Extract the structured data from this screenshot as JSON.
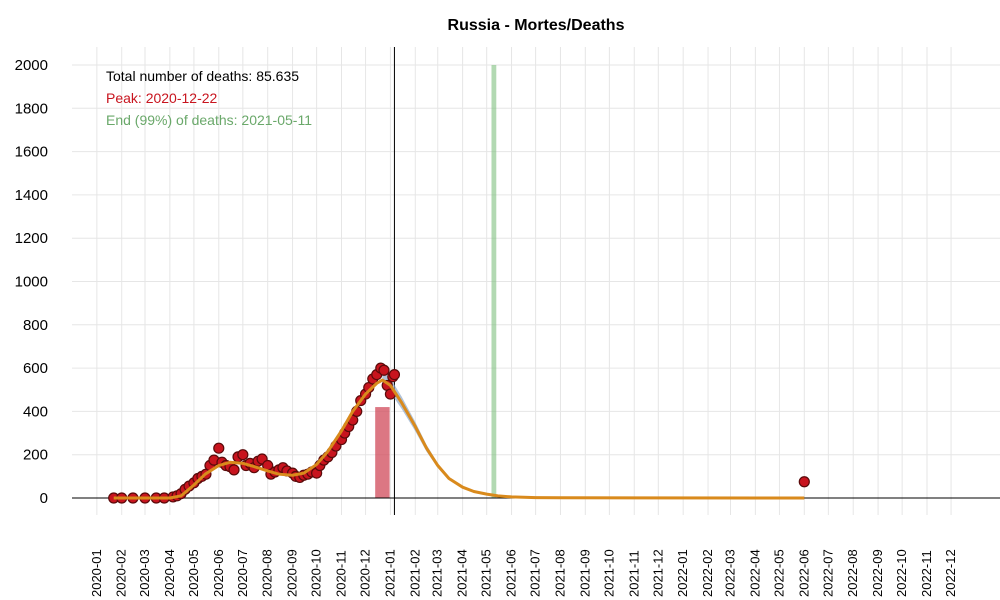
{
  "chart_data": {
    "type": "scatter",
    "title": "Russia - Mortes/Deaths",
    "xlabel": "",
    "ylabel": "",
    "ylim": [
      0,
      2000
    ],
    "xlim": [
      "2019-12-01",
      "2023-01-31"
    ],
    "yticks": [
      0,
      200,
      400,
      600,
      800,
      1000,
      1200,
      1400,
      1600,
      1800,
      2000
    ],
    "xticks": [
      "2020-01",
      "2020-02",
      "2020-03",
      "2020-04",
      "2020-05",
      "2020-06",
      "2020-07",
      "2020-08",
      "2020-09",
      "2020-10",
      "2020-11",
      "2020-12",
      "2021-01",
      "2021-02",
      "2021-03",
      "2021-04",
      "2021-05",
      "2021-06",
      "2021-07",
      "2021-08",
      "2021-09",
      "2021-10",
      "2021-11",
      "2021-12",
      "2022-01",
      "2022-02",
      "2022-03",
      "2022-04",
      "2022-05",
      "2022-06",
      "2022-07",
      "2022-08",
      "2022-09",
      "2022-10",
      "2022-11",
      "2022-12"
    ],
    "grid": true,
    "annotations": {
      "total": "Total number of deaths: 85.635",
      "peak": "Peak: 2020-12-22",
      "end": "End (99%) of deaths: 2021-05-11"
    },
    "colors": {
      "points_fill": "#c8141e",
      "points_stroke": "#5a0a0a",
      "fit_line": "#d98a1c",
      "peak_band": "#d04a5a",
      "end_band": "#7fbf7f",
      "peak_text": "#c8141e",
      "end_text": "#6aa86a",
      "ci_band": "#8fa8c8"
    },
    "current_date": "2021-01-06",
    "peak_band": [
      "2020-12-13",
      "2020-12-31"
    ],
    "end_band": [
      "2021-05-07",
      "2021-05-13"
    ],
    "observed": {
      "dates": [
        "2020-01-22",
        "2020-02-01",
        "2020-02-15",
        "2020-03-01",
        "2020-03-15",
        "2020-03-25",
        "2020-04-05",
        "2020-04-10",
        "2020-04-15",
        "2020-04-20",
        "2020-04-25",
        "2020-05-01",
        "2020-05-06",
        "2020-05-11",
        "2020-05-16",
        "2020-05-21",
        "2020-05-26",
        "2020-06-01",
        "2020-06-05",
        "2020-06-10",
        "2020-06-15",
        "2020-06-20",
        "2020-06-25",
        "2020-07-01",
        "2020-07-05",
        "2020-07-10",
        "2020-07-15",
        "2020-07-20",
        "2020-07-25",
        "2020-08-01",
        "2020-08-05",
        "2020-08-10",
        "2020-08-15",
        "2020-08-20",
        "2020-08-25",
        "2020-09-01",
        "2020-09-05",
        "2020-09-10",
        "2020-09-15",
        "2020-09-20",
        "2020-09-25",
        "2020-10-01",
        "2020-10-05",
        "2020-10-10",
        "2020-10-15",
        "2020-10-20",
        "2020-10-25",
        "2020-11-01",
        "2020-11-05",
        "2020-11-10",
        "2020-11-15",
        "2020-11-20",
        "2020-11-25",
        "2020-12-01",
        "2020-12-05",
        "2020-12-10",
        "2020-12-15",
        "2020-12-20",
        "2020-12-24",
        "2020-12-28",
        "2021-01-01",
        "2021-01-04",
        "2021-01-06",
        "2022-06-01"
      ],
      "values": [
        0,
        0,
        0,
        0,
        0,
        0,
        5,
        10,
        20,
        40,
        55,
        70,
        90,
        100,
        110,
        150,
        175,
        230,
        165,
        150,
        145,
        130,
        190,
        200,
        150,
        160,
        140,
        170,
        180,
        150,
        110,
        120,
        130,
        140,
        125,
        115,
        100,
        95,
        105,
        110,
        120,
        115,
        150,
        175,
        190,
        210,
        240,
        270,
        300,
        330,
        360,
        400,
        450,
        480,
        510,
        550,
        570,
        600,
        590,
        520,
        480,
        560,
        570,
        75
      ]
    },
    "fit_line": {
      "dates": [
        "2020-01-22",
        "2020-04-01",
        "2020-04-15",
        "2020-05-01",
        "2020-05-15",
        "2020-06-01",
        "2020-06-15",
        "2020-07-01",
        "2020-07-15",
        "2020-08-01",
        "2020-08-15",
        "2020-09-01",
        "2020-09-15",
        "2020-10-01",
        "2020-10-15",
        "2020-11-01",
        "2020-11-15",
        "2020-12-01",
        "2020-12-15",
        "2020-12-22",
        "2021-01-01",
        "2021-01-15",
        "2021-02-01",
        "2021-02-15",
        "2021-03-01",
        "2021-03-15",
        "2021-04-01",
        "2021-04-15",
        "2021-05-01",
        "2021-05-15",
        "2021-06-01",
        "2021-07-01",
        "2021-08-01",
        "2022-06-01"
      ],
      "values": [
        0,
        0,
        10,
        60,
        110,
        150,
        165,
        160,
        145,
        125,
        110,
        105,
        115,
        155,
        215,
        310,
        400,
        480,
        530,
        545,
        520,
        440,
        330,
        230,
        150,
        90,
        50,
        30,
        18,
        10,
        5,
        2,
        1,
        0
      ]
    }
  }
}
